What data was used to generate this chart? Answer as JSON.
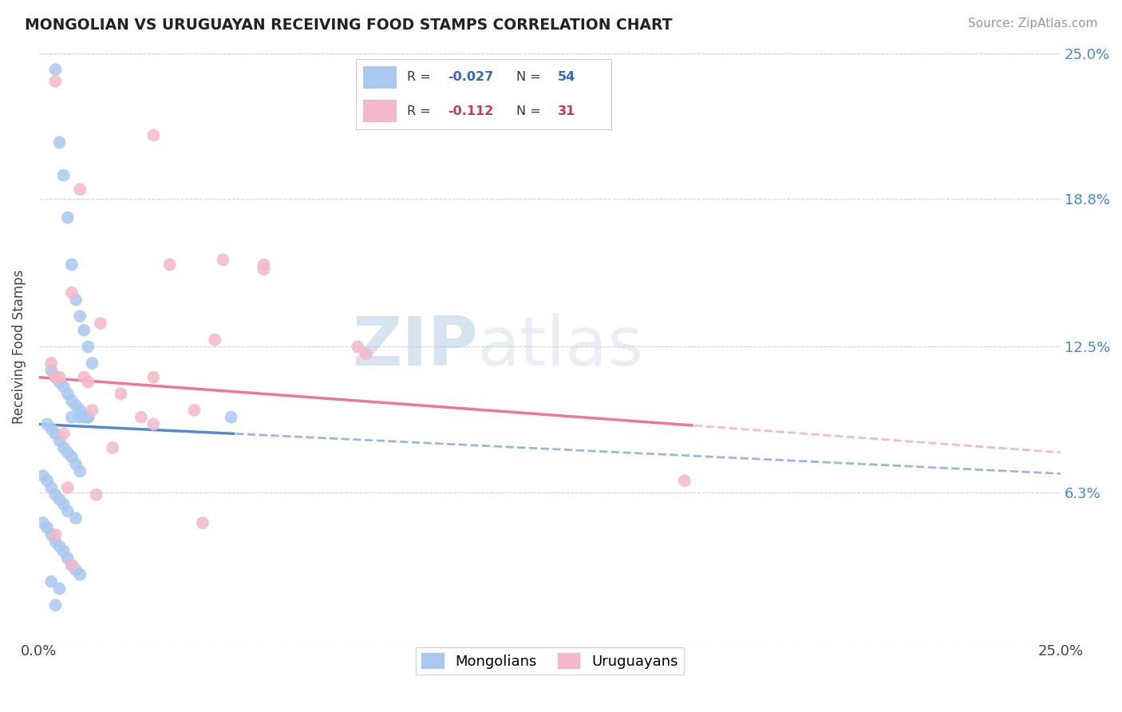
{
  "title": "MONGOLIAN VS URUGUAYAN RECEIVING FOOD STAMPS CORRELATION CHART",
  "source": "Source: ZipAtlas.com",
  "ylabel": "Receiving Food Stamps",
  "xlim": [
    0.0,
    25.0
  ],
  "ylim": [
    0.0,
    25.0
  ],
  "ytick_positions": [
    0.0,
    6.3,
    12.5,
    18.8,
    25.0
  ],
  "mongolian_R": -0.027,
  "mongolian_N": 54,
  "uruguayan_R": -0.112,
  "uruguayan_N": 31,
  "mongolian_color": "#a8c8f0",
  "uruguayan_color": "#f4b8c8",
  "mongolian_line_color": "#5588cc",
  "uruguayan_line_color": "#ee7799",
  "background_color": "#ffffff",
  "grid_color": "#cccccc",
  "watermark_zip": "ZIP",
  "watermark_atlas": "atlas",
  "legend_mongo_R": "-0.027",
  "legend_mongo_N": "54",
  "legend_urug_R": "-0.112",
  "legend_urug_N": "31",
  "mongo_line_x0": 0.0,
  "mongo_line_y0": 9.2,
  "mongo_line_x1": 25.0,
  "mongo_line_y1": 7.1,
  "mongo_solid_end": 4.8,
  "urug_line_x0": 0.0,
  "urug_line_y0": 11.2,
  "urug_line_x1": 25.0,
  "urug_line_y1": 8.0,
  "urug_solid_end": 16.0,
  "mongo_x": [
    0.4,
    0.5,
    0.6,
    0.7,
    0.8,
    0.9,
    1.0,
    1.1,
    1.2,
    1.3,
    0.3,
    0.4,
    0.5,
    0.6,
    0.7,
    0.8,
    0.9,
    1.0,
    1.1,
    1.2,
    0.2,
    0.3,
    0.4,
    0.5,
    0.6,
    0.7,
    0.8,
    0.9,
    1.0,
    1.2,
    0.1,
    0.2,
    0.3,
    0.4,
    0.5,
    0.6,
    0.7,
    0.8,
    0.9,
    1.0,
    0.1,
    0.2,
    0.3,
    0.4,
    0.5,
    0.6,
    0.7,
    0.8,
    0.9,
    1.0,
    4.7,
    0.3,
    0.5,
    0.4
  ],
  "mongo_y": [
    24.3,
    21.2,
    19.8,
    18.0,
    16.0,
    14.5,
    13.8,
    13.2,
    12.5,
    11.8,
    11.5,
    11.2,
    11.0,
    10.8,
    10.5,
    10.2,
    10.0,
    9.8,
    9.5,
    9.5,
    9.2,
    9.0,
    8.8,
    8.5,
    8.2,
    8.0,
    7.8,
    7.5,
    7.2,
    9.5,
    7.0,
    6.8,
    6.5,
    6.2,
    6.0,
    5.8,
    5.5,
    9.5,
    5.2,
    9.5,
    5.0,
    4.8,
    4.5,
    4.2,
    4.0,
    3.8,
    3.5,
    3.2,
    3.0,
    2.8,
    9.5,
    2.5,
    2.2,
    1.5
  ],
  "urug_x": [
    0.4,
    2.8,
    1.0,
    3.2,
    0.8,
    1.5,
    4.3,
    0.3,
    1.2,
    2.0,
    3.8,
    2.8,
    0.6,
    1.8,
    2.5,
    0.4,
    1.1,
    2.8,
    7.8,
    0.7,
    1.4,
    5.5,
    4.5,
    5.5,
    4.0,
    0.5,
    8.0,
    0.4,
    15.8,
    0.8,
    1.3
  ],
  "urug_y": [
    23.8,
    21.5,
    19.2,
    16.0,
    14.8,
    13.5,
    12.8,
    11.8,
    11.0,
    10.5,
    9.8,
    9.2,
    8.8,
    8.2,
    9.5,
    11.2,
    11.2,
    11.2,
    12.5,
    6.5,
    6.2,
    16.0,
    16.2,
    15.8,
    5.0,
    11.2,
    12.2,
    4.5,
    6.8,
    3.2,
    9.8
  ]
}
